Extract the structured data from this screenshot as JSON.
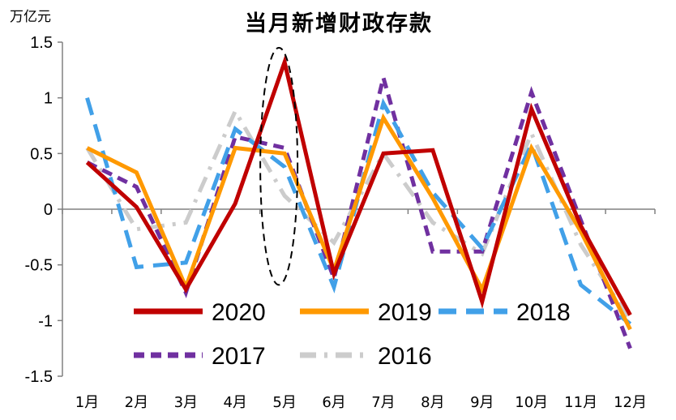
{
  "chart_data": {
    "type": "line",
    "title": "当月新增财政存款",
    "ylabel": "万亿元",
    "xlabel": "",
    "ylim": [
      -1.5,
      1.5
    ],
    "yticks": [
      1.5,
      1,
      0.5,
      0,
      -0.5,
      -1,
      -1.5
    ],
    "ytick_labels": [
      "1.5",
      "1",
      "0.5",
      "0",
      "-0.5",
      "-1",
      "-1.5"
    ],
    "categories": [
      "1月",
      "2月",
      "3月",
      "4月",
      "5月",
      "6月",
      "7月",
      "8月",
      "9月",
      "10月",
      "11月",
      "12月"
    ],
    "series": [
      {
        "name": "2020",
        "color": "#c00000",
        "dash": "solid",
        "values": [
          0.42,
          0.02,
          -0.72,
          0.05,
          1.32,
          -0.58,
          0.5,
          0.53,
          -0.83,
          0.9,
          -0.15,
          -0.95
        ]
      },
      {
        "name": "2019",
        "color": "#ff9900",
        "dash": "solid",
        "values": [
          0.55,
          0.33,
          -0.7,
          0.55,
          0.5,
          -0.55,
          0.82,
          0.1,
          -0.72,
          0.55,
          -0.2,
          -1.08
        ]
      },
      {
        "name": "2018",
        "color": "#41a0e8",
        "dash": "long-dash",
        "values": [
          1.0,
          -0.52,
          -0.48,
          0.72,
          0.38,
          -0.7,
          0.95,
          0.15,
          -0.35,
          0.58,
          -0.68,
          -1.03
        ]
      },
      {
        "name": "2017",
        "color": "#7030a0",
        "dash": "dash",
        "values": [
          0.42,
          0.2,
          -0.75,
          0.65,
          0.55,
          -0.62,
          1.18,
          -0.38,
          -0.38,
          1.05,
          -0.1,
          -1.25
        ]
      },
      {
        "name": "2016",
        "color": "#cccccc",
        "dash": "dash-dot",
        "values": [
          0.55,
          -0.18,
          -0.12,
          0.88,
          0.12,
          -0.3,
          0.5,
          -0.12,
          -0.4,
          0.68,
          -0.32,
          -1.0
        ]
      }
    ],
    "legend_position": "bottom-center",
    "annotations": [
      "dashed ellipse around 5月"
    ]
  }
}
